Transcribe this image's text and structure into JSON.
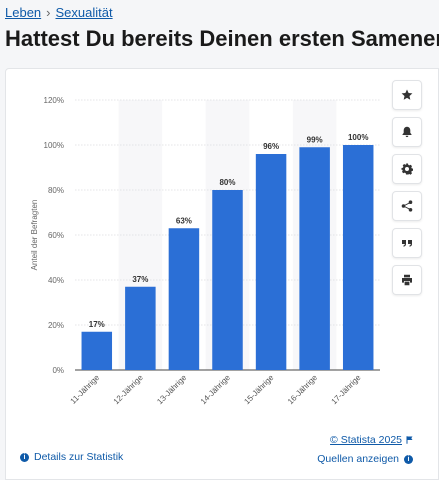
{
  "breadcrumb": {
    "items": [
      "Leben",
      "Sexualität"
    ],
    "separator": "›"
  },
  "page": {
    "title": "Hattest Du bereits Deinen ersten Samenerguss?"
  },
  "sidebar": {
    "icons": [
      "star-icon",
      "bell-icon",
      "gear-icon",
      "share-icon",
      "quote-icon",
      "print-icon"
    ]
  },
  "footer": {
    "details_label": "Details zur Statistik",
    "copyright": "© Statista 2025",
    "sources_label": "Quellen anzeigen"
  },
  "colors": {
    "bar": "#2b6fd6",
    "link": "#0f5aa8",
    "band": "#f7f7f9",
    "grid": "#dcdde0"
  },
  "chart_data": {
    "type": "bar",
    "categories": [
      "11-Jährige",
      "12-Jährige",
      "13-Jährige",
      "14-Jährige",
      "15-Jährige",
      "16-Jährige",
      "17-Jährige"
    ],
    "values": [
      17,
      37,
      63,
      80,
      96,
      99,
      100
    ],
    "data_labels": [
      "17%",
      "37%",
      "63%",
      "80%",
      "96%",
      "99%",
      "100%"
    ],
    "ylabel": "Anteil der Befragten",
    "yticks": [
      "0%",
      "20%",
      "40%",
      "60%",
      "80%",
      "100%",
      "120%"
    ],
    "ytick_values": [
      0,
      20,
      40,
      60,
      80,
      100,
      120
    ],
    "ylim": [
      0,
      120
    ],
    "grid": true
  }
}
